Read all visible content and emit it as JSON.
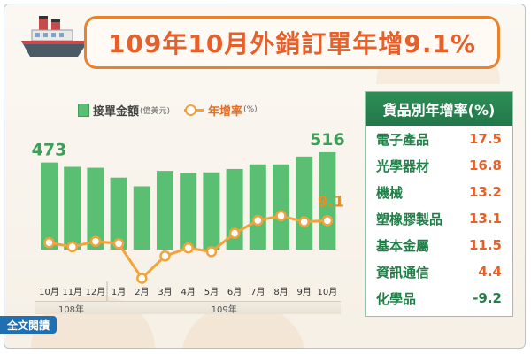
{
  "title": "109年10月外銷訂單年增9.1%",
  "legend": {
    "bar_label": "接單金額",
    "bar_unit": "(億美元)",
    "line_label": "年增率",
    "line_unit": "(%)"
  },
  "colors": {
    "bar": "#5bbf73",
    "line": "#f2a33a",
    "title": "#e5602b",
    "table_header": "#2d8e55"
  },
  "chart_data": {
    "type": "bar",
    "categories": [
      "10月",
      "11月",
      "12月",
      "1月",
      "2月",
      "3月",
      "4月",
      "5月",
      "6月",
      "7月",
      "8月",
      "9月",
      "10月"
    ],
    "year_groups": [
      {
        "label": "108年",
        "start": 0,
        "end": 2
      },
      {
        "label": "109年",
        "start": 3,
        "end": 12
      }
    ],
    "series": [
      {
        "name": "接單金額",
        "type": "bar",
        "values": [
          473,
          455,
          451,
          410,
          374,
          438,
          430,
          432,
          446,
          465,
          465,
          498,
          516
        ],
        "labels_shown": {
          "0": "473",
          "12": "516"
        }
      },
      {
        "name": "年增率",
        "type": "line",
        "values": [
          -0.5,
          -2.3,
          0.1,
          -0.9,
          -16.0,
          -6.3,
          -2.8,
          -4.4,
          3.6,
          9.2,
          11.2,
          8.6,
          9.1
        ],
        "labels_shown": {
          "12": "9.1"
        }
      }
    ],
    "bar_ylim": [
      0,
      560
    ],
    "line_ylim": [
      -22,
      32
    ],
    "grid": false
  },
  "table": {
    "title": "貨品別年增率(%)",
    "rows": [
      {
        "label": "電子產品",
        "value": "17.5"
      },
      {
        "label": "光學器材",
        "value": "16.8"
      },
      {
        "label": "機械",
        "value": "13.2"
      },
      {
        "label": "塑橡膠製品",
        "value": "13.1"
      },
      {
        "label": "基本金屬",
        "value": "11.5"
      },
      {
        "label": "資訊通信",
        "value": "4.4"
      },
      {
        "label": "化學品",
        "value": "-9.2"
      }
    ]
  },
  "read_button": "全文閱讀"
}
